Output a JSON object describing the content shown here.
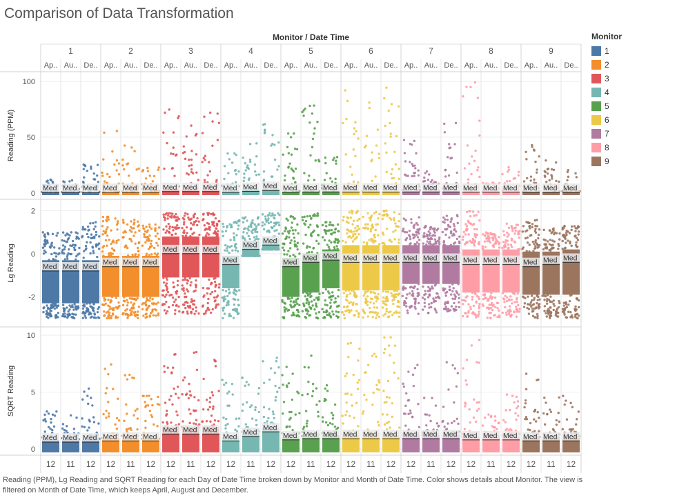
{
  "title": "Comparison of Data Transformation",
  "caption": "Reading (PPM), Lg Reading and SQRT Reading for each Day of Date Time broken down by Monitor and Month of Date Time.  Color shows details about Monitor. The view is filtered on Month of Date Time, which keeps April, August and December.",
  "legend": {
    "title": "Monitor",
    "items": [
      {
        "label": "1",
        "color": "#4e79a7"
      },
      {
        "label": "2",
        "color": "#f28e2b"
      },
      {
        "label": "3",
        "color": "#e15759"
      },
      {
        "label": "4",
        "color": "#76b7b2"
      },
      {
        "label": "5",
        "color": "#59a14f"
      },
      {
        "label": "6",
        "color": "#edc948"
      },
      {
        "label": "7",
        "color": "#b07aa1"
      },
      {
        "label": "8",
        "color": "#ff9da7"
      },
      {
        "label": "9",
        "color": "#9c755f"
      }
    ]
  },
  "chart_data": {
    "type": "scatter",
    "column_header": "Monitor / Date Time",
    "monitors": [
      "1",
      "2",
      "3",
      "4",
      "5",
      "6",
      "7",
      "8",
      "9"
    ],
    "month_labels": [
      "Ap..",
      "Au..",
      "De.."
    ],
    "bottom_labels": [
      "12",
      "11",
      "12"
    ],
    "median_label": "Med",
    "panels": [
      {
        "ylabel": "Reading (PPM)",
        "ylim": [
          -2,
          105
        ],
        "ticks": [
          0,
          50,
          100
        ],
        "tick_labels": [
          "0",
          "50",
          "100"
        ]
      },
      {
        "ylabel": "Lg Reading",
        "ylim": [
          -3.2,
          2.3
        ],
        "ticks": [
          -2,
          0,
          2
        ],
        "tick_labels": [
          "-2",
          "0",
          "2"
        ]
      },
      {
        "ylabel": "SQRT Reading",
        "ylim": [
          -0.3,
          10.3
        ],
        "ticks": [
          0,
          5,
          10
        ],
        "tick_labels": [
          "0",
          "5",
          "10"
        ]
      }
    ],
    "cells": [
      {
        "monitor": "1",
        "month": "Ap..",
        "ppm": {
          "q1": 0.2,
          "med": 0.35,
          "q3": 0.6,
          "max": 12
        },
        "lg": {
          "q1": -2.3,
          "med": -0.8,
          "q3": -0.3,
          "min": -3.0,
          "max": 1.0
        },
        "sqrt": {
          "q1": 0.4,
          "med": 0.6,
          "q3": 0.8,
          "max": 3.4
        }
      },
      {
        "monitor": "1",
        "month": "Au..",
        "ppm": {
          "q1": 0.2,
          "med": 0.35,
          "q3": 0.6,
          "max": 12
        },
        "lg": {
          "q1": -2.3,
          "med": -0.8,
          "q3": -0.3,
          "min": -3.0,
          "max": 1.0
        },
        "sqrt": {
          "q1": 0.4,
          "med": 0.6,
          "q3": 0.8,
          "max": 3.4
        }
      },
      {
        "monitor": "1",
        "month": "De..",
        "ppm": {
          "q1": 0.2,
          "med": 0.35,
          "q3": 0.6,
          "max": 33
        },
        "lg": {
          "q1": -2.3,
          "med": -0.8,
          "q3": -0.3,
          "min": -3.0,
          "max": 1.5
        },
        "sqrt": {
          "q1": 0.4,
          "med": 0.6,
          "q3": 0.8,
          "max": 5.7
        }
      },
      {
        "monitor": "2",
        "month": "Ap..",
        "ppm": {
          "q1": 0.3,
          "med": 0.5,
          "q3": 0.8,
          "max": 60
        },
        "lg": {
          "q1": -2.0,
          "med": -0.6,
          "q3": -0.1,
          "min": -3.0,
          "max": 1.8
        },
        "sqrt": {
          "q1": 0.5,
          "med": 0.7,
          "q3": 0.9,
          "max": 7.7
        }
      },
      {
        "monitor": "2",
        "month": "Au..",
        "ppm": {
          "q1": 0.3,
          "med": 0.5,
          "q3": 0.8,
          "max": 43
        },
        "lg": {
          "q1": -2.0,
          "med": -0.6,
          "q3": -0.1,
          "min": -3.0,
          "max": 1.6
        },
        "sqrt": {
          "q1": 0.5,
          "med": 0.7,
          "q3": 0.9,
          "max": 6.6
        }
      },
      {
        "monitor": "2",
        "month": "De..",
        "ppm": {
          "q1": 0.3,
          "med": 0.5,
          "q3": 0.8,
          "max": 27
        },
        "lg": {
          "q1": -2.0,
          "med": -0.6,
          "q3": -0.1,
          "min": -3.0,
          "max": 1.4
        },
        "sqrt": {
          "q1": 0.5,
          "med": 0.7,
          "q3": 0.9,
          "max": 5.2
        }
      },
      {
        "monitor": "3",
        "month": "Ap..",
        "ppm": {
          "q1": 0.6,
          "med": 1.2,
          "q3": 2.2,
          "max": 75
        },
        "lg": {
          "q1": -1.1,
          "med": 0.0,
          "q3": 0.8,
          "min": -2.8,
          "max": 1.9
        },
        "sqrt": {
          "q1": 0.9,
          "med": 1.3,
          "q3": 1.9,
          "max": 8.6
        }
      },
      {
        "monitor": "3",
        "month": "Au..",
        "ppm": {
          "q1": 0.6,
          "med": 1.2,
          "q3": 2.2,
          "max": 85
        },
        "lg": {
          "q1": -1.1,
          "med": 0.0,
          "q3": 0.8,
          "min": -2.8,
          "max": 1.9
        },
        "sqrt": {
          "q1": 0.9,
          "med": 1.3,
          "q3": 1.9,
          "max": 9.2
        }
      },
      {
        "monitor": "3",
        "month": "De..",
        "ppm": {
          "q1": 0.6,
          "med": 1.2,
          "q3": 2.2,
          "max": 80
        },
        "lg": {
          "q1": -1.1,
          "med": 0.0,
          "q3": 0.8,
          "min": -2.8,
          "max": 1.9
        },
        "sqrt": {
          "q1": 0.9,
          "med": 1.3,
          "q3": 1.9,
          "max": 8.9
        }
      },
      {
        "monitor": "4",
        "month": "Ap..",
        "ppm": {
          "q1": 0.3,
          "med": 0.5,
          "q3": 1.0,
          "max": 40
        },
        "lg": {
          "q1": -1.6,
          "med": -0.5,
          "q3": -0.1,
          "min": -3.0,
          "max": 1.6
        },
        "sqrt": {
          "q1": 0.5,
          "med": 0.7,
          "q3": 1.0,
          "max": 6.3
        }
      },
      {
        "monitor": "4",
        "month": "Au..",
        "ppm": {
          "q1": 1.0,
          "med": 1.4,
          "q3": 2.0,
          "max": 45
        },
        "lg": {
          "q1": -0.1,
          "med": 0.2,
          "q3": 0.6,
          "min": -0.1,
          "max": 1.7
        },
        "sqrt": {
          "q1": 0.9,
          "med": 1.1,
          "q3": 1.4,
          "max": 6.7
        }
      },
      {
        "monitor": "4",
        "month": "De..",
        "ppm": {
          "q1": 1.5,
          "med": 2.2,
          "q3": 3.0,
          "max": 66
        },
        "lg": {
          "q1": 0.2,
          "med": 0.4,
          "q3": 0.7,
          "min": 0.2,
          "max": 1.9
        },
        "sqrt": {
          "q1": 1.2,
          "med": 1.5,
          "q3": 1.8,
          "max": 8.1
        }
      },
      {
        "monitor": "5",
        "month": "Ap..",
        "ppm": {
          "q1": 0.3,
          "med": 0.6,
          "q3": 1.0,
          "max": 57
        },
        "lg": {
          "q1": -2.0,
          "med": -0.6,
          "q3": -0.2,
          "min": -3.0,
          "max": 1.8
        },
        "sqrt": {
          "q1": 0.5,
          "med": 0.8,
          "q3": 1.0,
          "max": 7.5
        }
      },
      {
        "monitor": "5",
        "month": "Au..",
        "ppm": {
          "q1": 0.4,
          "med": 0.7,
          "q3": 1.2,
          "max": 85
        },
        "lg": {
          "q1": -1.8,
          "med": -0.4,
          "q3": 0.0,
          "min": -3.0,
          "max": 1.9
        },
        "sqrt": {
          "q1": 0.6,
          "med": 0.9,
          "q3": 1.1,
          "max": 9.2
        }
      },
      {
        "monitor": "5",
        "month": "De..",
        "ppm": {
          "q1": 0.5,
          "med": 0.8,
          "q3": 1.4,
          "max": 35
        },
        "lg": {
          "q1": -1.6,
          "med": -0.3,
          "q3": 0.2,
          "min": -3.0,
          "max": 1.5
        },
        "sqrt": {
          "q1": 0.7,
          "med": 0.9,
          "q3": 1.2,
          "max": 5.9
        }
      },
      {
        "monitor": "6",
        "month": "Ap..",
        "ppm": {
          "q1": 0.4,
          "med": 0.7,
          "q3": 1.4,
          "max": 95
        },
        "lg": {
          "q1": -1.7,
          "med": -0.4,
          "q3": 0.4,
          "min": -3.0,
          "max": 2.0
        },
        "sqrt": {
          "q1": 0.6,
          "med": 0.9,
          "q3": 1.2,
          "max": 9.7
        }
      },
      {
        "monitor": "6",
        "month": "Au..",
        "ppm": {
          "q1": 0.4,
          "med": 0.7,
          "q3": 1.4,
          "max": 88
        },
        "lg": {
          "q1": -1.7,
          "med": -0.4,
          "q3": 0.4,
          "min": -3.0,
          "max": 2.0
        },
        "sqrt": {
          "q1": 0.6,
          "med": 0.9,
          "q3": 1.2,
          "max": 9.4
        }
      },
      {
        "monitor": "6",
        "month": "De..",
        "ppm": {
          "q1": 0.4,
          "med": 0.7,
          "q3": 1.4,
          "max": 100
        },
        "lg": {
          "q1": -1.7,
          "med": -0.4,
          "q3": 0.4,
          "min": -3.0,
          "max": 2.0
        },
        "sqrt": {
          "q1": 0.6,
          "med": 0.9,
          "q3": 1.2,
          "max": 10
        }
      },
      {
        "monitor": "7",
        "month": "Ap..",
        "ppm": {
          "q1": 0.4,
          "med": 0.7,
          "q3": 1.6,
          "max": 55
        },
        "lg": {
          "q1": -1.4,
          "med": -0.4,
          "q3": 0.4,
          "min": -2.8,
          "max": 1.7
        },
        "sqrt": {
          "q1": 0.6,
          "med": 0.9,
          "q3": 1.2,
          "max": 7.4
        }
      },
      {
        "monitor": "7",
        "month": "Au..",
        "ppm": {
          "q1": 0.4,
          "med": 0.7,
          "q3": 1.6,
          "max": 20
        },
        "lg": {
          "q1": -1.4,
          "med": -0.4,
          "q3": 0.4,
          "min": -2.8,
          "max": 1.3
        },
        "sqrt": {
          "q1": 0.6,
          "med": 0.9,
          "q3": 1.2,
          "max": 4.5
        }
      },
      {
        "monitor": "7",
        "month": "De..",
        "ppm": {
          "q1": 0.4,
          "med": 0.7,
          "q3": 1.6,
          "max": 63
        },
        "lg": {
          "q1": -1.4,
          "med": -0.4,
          "q3": 0.4,
          "min": -2.8,
          "max": 1.8
        },
        "sqrt": {
          "q1": 0.6,
          "med": 0.9,
          "q3": 1.2,
          "max": 7.9
        }
      },
      {
        "monitor": "8",
        "month": "Ap..",
        "ppm": {
          "q1": 0.3,
          "med": 0.6,
          "q3": 1.3,
          "max": 100
        },
        "lg": {
          "q1": -1.8,
          "med": -0.5,
          "q3": 0.2,
          "min": -3.0,
          "max": 2.0
        },
        "sqrt": {
          "q1": 0.5,
          "med": 0.8,
          "q3": 1.1,
          "max": 10
        }
      },
      {
        "monitor": "8",
        "month": "Au..",
        "ppm": {
          "q1": 0.3,
          "med": 0.6,
          "q3": 1.3,
          "max": 10
        },
        "lg": {
          "q1": -1.8,
          "med": -0.5,
          "q3": 0.2,
          "min": -3.0,
          "max": 1.0
        },
        "sqrt": {
          "q1": 0.5,
          "med": 0.8,
          "q3": 1.1,
          "max": 3.2
        }
      },
      {
        "monitor": "8",
        "month": "De..",
        "ppm": {
          "q1": 0.3,
          "med": 0.6,
          "q3": 1.3,
          "max": 23
        },
        "lg": {
          "q1": -1.8,
          "med": -0.5,
          "q3": 0.2,
          "min": -3.0,
          "max": 1.4
        },
        "sqrt": {
          "q1": 0.5,
          "med": 0.8,
          "q3": 1.1,
          "max": 4.8
        }
      },
      {
        "monitor": "9",
        "month": "Ap..",
        "ppm": {
          "q1": 0.3,
          "med": 0.5,
          "q3": 1.0,
          "max": 45
        },
        "lg": {
          "q1": -1.9,
          "med": -0.6,
          "q3": 0.1,
          "min": -3.0,
          "max": 1.6
        },
        "sqrt": {
          "q1": 0.5,
          "med": 0.7,
          "q3": 1.0,
          "max": 6.9
        }
      },
      {
        "monitor": "9",
        "month": "Au..",
        "ppm": {
          "q1": 0.3,
          "med": 0.5,
          "q3": 1.0,
          "max": 30
        },
        "lg": {
          "q1": -1.9,
          "med": -0.5,
          "q3": 0.1,
          "min": -3.0,
          "max": 1.2
        },
        "sqrt": {
          "q1": 0.5,
          "med": 0.7,
          "q3": 1.0,
          "max": 4.7
        }
      },
      {
        "monitor": "9",
        "month": "De..",
        "ppm": {
          "q1": 0.3,
          "med": 0.5,
          "q3": 1.0,
          "max": 25
        },
        "lg": {
          "q1": -1.9,
          "med": -0.4,
          "q3": 0.2,
          "min": -3.0,
          "max": 1.3
        },
        "sqrt": {
          "q1": 0.5,
          "med": 0.7,
          "q3": 1.0,
          "max": 4.8
        }
      }
    ]
  }
}
